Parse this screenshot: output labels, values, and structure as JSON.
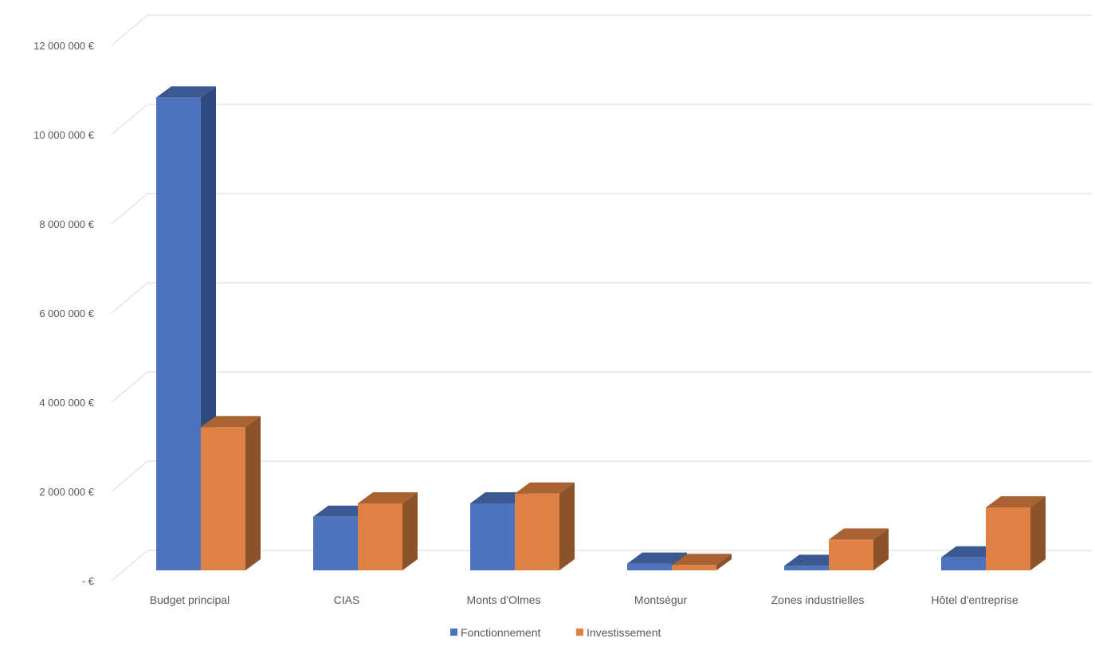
{
  "chart_data": {
    "type": "bar",
    "title": "",
    "xlabel": "",
    "ylabel": "",
    "ylim": [
      0,
      12000000
    ],
    "grid": true,
    "legend_position": "bottom",
    "y_ticks": [
      0,
      2000000,
      4000000,
      6000000,
      8000000,
      10000000,
      12000000
    ],
    "y_tick_labels": [
      "- €",
      "2 000 000 €",
      "4 000 000 €",
      "6 000 000 €",
      "8 000 000 €",
      "10 000 000 €",
      "12 000 000 €"
    ],
    "categories": [
      "Budget principal",
      "CIAS",
      "Monts d'Olmes",
      "Montségur",
      "Zones industrielles",
      "Hôtel d'entreprise"
    ],
    "series": [
      {
        "name": "Fonctionnement",
        "color": "#4E73BE",
        "top_color": "#3C5891",
        "side_color": "#2F4A7E",
        "values": [
          10600000,
          1200000,
          1500000,
          150000,
          100000,
          290000
        ]
      },
      {
        "name": "Investissement",
        "color": "#DD8244",
        "top_color": "#A96232",
        "side_color": "#8B532A",
        "values": [
          3210000,
          1500000,
          1720000,
          120000,
          690000,
          1410000
        ]
      }
    ]
  }
}
